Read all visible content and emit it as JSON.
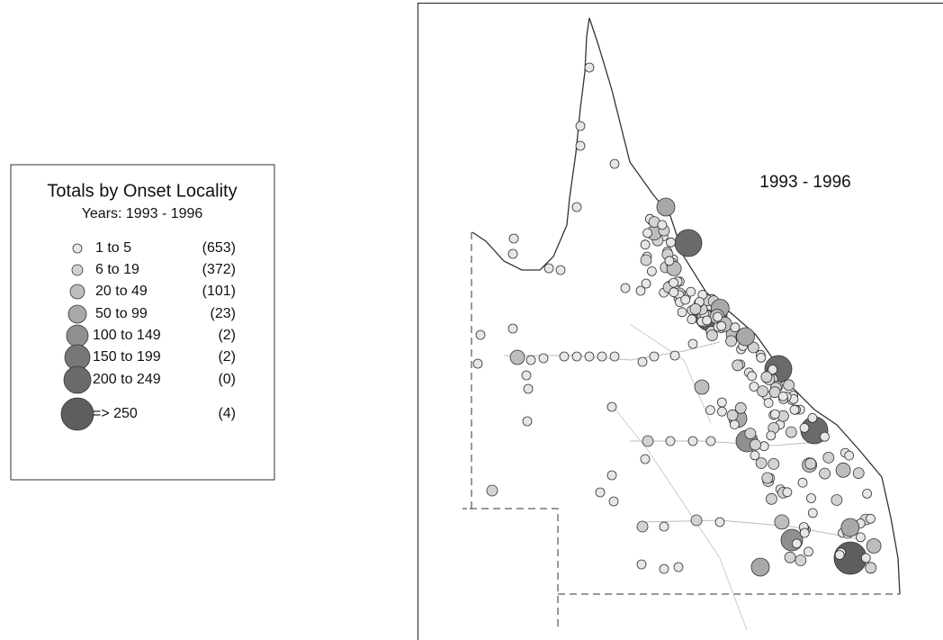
{
  "legend": {
    "title": "Totals by Onset Locality",
    "subtitle": "Years: 1993 - 1996",
    "items": [
      {
        "range": "1 to 5",
        "count": "(653)"
      },
      {
        "range": "6 to 19",
        "count": "(372)"
      },
      {
        "range": "20 to 49",
        "count": "(101)"
      },
      {
        "range": "50 to 99",
        "count": "(23)"
      },
      {
        "range": "100 to 149",
        "count": "(2)"
      },
      {
        "range": "150 to 199",
        "count": "(2)"
      },
      {
        "range": "200 to 249",
        "count": "(0)"
      },
      {
        "range": "=> 250",
        "count": "(4)"
      }
    ]
  },
  "map": {
    "label": "1993 - 1996"
  }
}
